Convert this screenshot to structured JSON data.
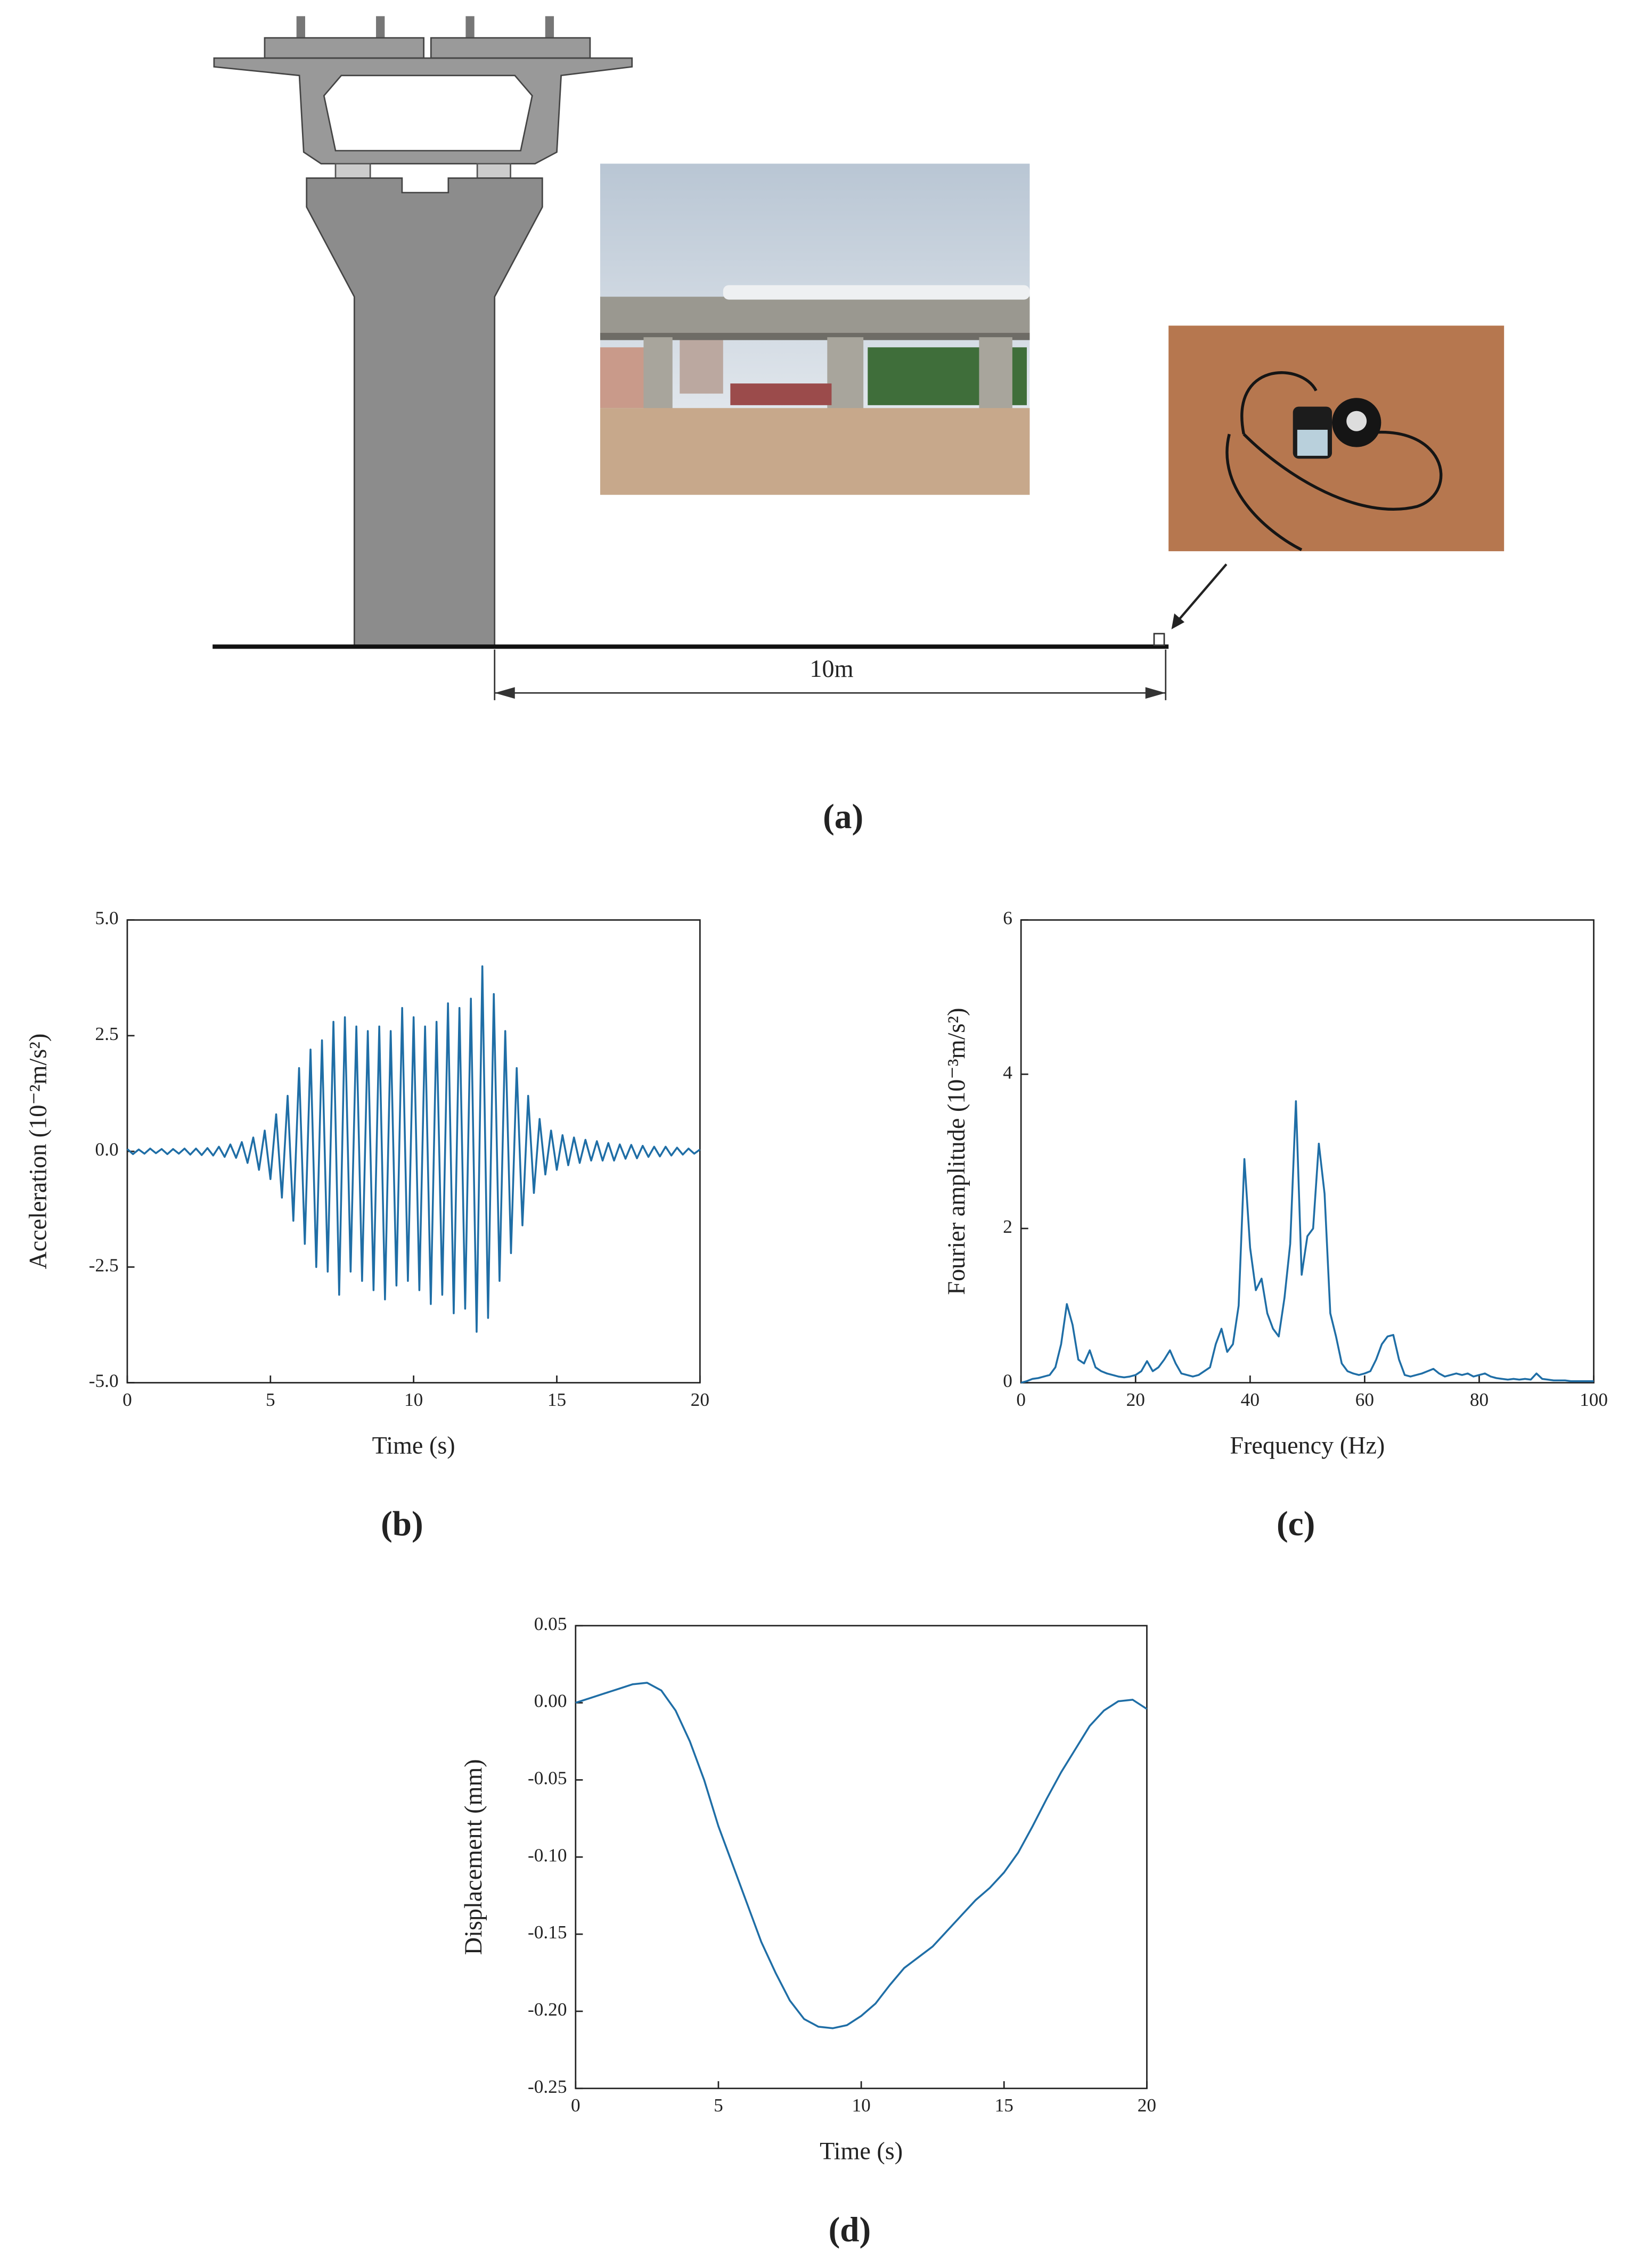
{
  "diagram": {
    "dimension_label": "10m",
    "caption": "(a)"
  },
  "chart_data": [
    {
      "type": "line",
      "caption": "(b)",
      "x_label": "Time (s)",
      "y_label": "Acceleration (10⁻²m/s²)",
      "color": "#1f6ea6",
      "xlim": [
        0,
        20
      ],
      "xticks": [
        0,
        5,
        10,
        15,
        20
      ],
      "ylim": [
        -5,
        5
      ],
      "yticks": [
        {
          "value": -5,
          "label": "-5.0"
        },
        {
          "value": -2.5,
          "label": "-2.5"
        },
        {
          "value": 0,
          "label": "0.0"
        },
        {
          "value": 2.5,
          "label": "2.5"
        },
        {
          "value": 5,
          "label": "5.0"
        }
      ],
      "x": [
        0,
        0.2,
        0.4,
        0.6,
        0.8,
        1,
        1.2,
        1.4,
        1.6,
        1.8,
        2,
        2.2,
        2.4,
        2.6,
        2.8,
        3,
        3.2,
        3.4,
        3.6,
        3.8,
        4,
        4.2,
        4.4,
        4.6,
        4.8,
        5,
        5.2,
        5.4,
        5.6,
        5.8,
        6,
        6.2,
        6.4,
        6.6,
        6.8,
        7,
        7.2,
        7.4,
        7.6,
        7.8,
        8,
        8.2,
        8.4,
        8.6,
        8.8,
        9,
        9.2,
        9.4,
        9.6,
        9.8,
        10,
        10.2,
        10.4,
        10.6,
        10.8,
        11,
        11.2,
        11.4,
        11.6,
        11.8,
        12,
        12.2,
        12.4,
        12.6,
        12.8,
        13,
        13.2,
        13.4,
        13.6,
        13.8,
        14,
        14.2,
        14.4,
        14.6,
        14.8,
        15,
        15.2,
        15.4,
        15.6,
        15.8,
        16,
        16.2,
        16.4,
        16.6,
        16.8,
        17,
        17.2,
        17.4,
        17.6,
        17.8,
        18,
        18.2,
        18.4,
        18.6,
        18.8,
        19,
        19.2,
        19.4,
        19.6,
        19.8,
        20
      ],
      "values": [
        0.05,
        -0.06,
        0.04,
        -0.05,
        0.06,
        -0.04,
        0.05,
        -0.06,
        0.05,
        -0.05,
        0.06,
        -0.07,
        0.06,
        -0.08,
        0.07,
        -0.09,
        0.1,
        -0.12,
        0.15,
        -0.14,
        0.2,
        -0.25,
        0.3,
        -0.4,
        0.45,
        -0.6,
        0.8,
        -1.0,
        1.2,
        -1.5,
        1.8,
        -2.0,
        2.2,
        -2.5,
        2.4,
        -2.6,
        2.8,
        -3.1,
        2.9,
        -2.6,
        2.7,
        -2.8,
        2.6,
        -3.0,
        2.7,
        -3.2,
        2.6,
        -2.9,
        3.1,
        -2.8,
        2.9,
        -3.0,
        2.7,
        -3.3,
        2.8,
        -3.1,
        3.2,
        -3.5,
        3.1,
        -3.4,
        3.3,
        -3.9,
        4.0,
        -3.6,
        3.4,
        -2.8,
        2.6,
        -2.2,
        1.8,
        -1.6,
        1.2,
        -0.9,
        0.7,
        -0.5,
        0.45,
        -0.4,
        0.35,
        -0.3,
        0.3,
        -0.25,
        0.25,
        -0.2,
        0.22,
        -0.2,
        0.18,
        -0.2,
        0.15,
        -0.16,
        0.14,
        -0.15,
        0.12,
        -0.12,
        0.1,
        -0.11,
        0.1,
        -0.09,
        0.08,
        -0.07,
        0.06,
        -0.05,
        0.04
      ]
    },
    {
      "type": "line",
      "caption": "(c)",
      "x_label": "Frequency (Hz)",
      "y_label": "Fourier amplitude (10⁻³m/s²)",
      "color": "#1f6ea6",
      "xlim": [
        0,
        100
      ],
      "xticks": [
        0,
        20,
        40,
        60,
        80,
        100
      ],
      "ylim": [
        0,
        6
      ],
      "yticks": [
        0,
        2,
        4,
        6
      ],
      "x": [
        0,
        1,
        2,
        3,
        4,
        5,
        6,
        7,
        8,
        9,
        10,
        11,
        12,
        13,
        14,
        15,
        16,
        17,
        18,
        19,
        20,
        21,
        22,
        23,
        24,
        25,
        26,
        27,
        28,
        29,
        30,
        31,
        32,
        33,
        34,
        35,
        36,
        37,
        38,
        39,
        40,
        41,
        42,
        43,
        44,
        45,
        46,
        47,
        48,
        49,
        50,
        51,
        52,
        53,
        54,
        55,
        56,
        57,
        58,
        59,
        60,
        61,
        62,
        63,
        64,
        65,
        66,
        67,
        68,
        69,
        70,
        71,
        72,
        73,
        74,
        75,
        76,
        77,
        78,
        79,
        80,
        81,
        82,
        83,
        84,
        85,
        86,
        87,
        88,
        89,
        90,
        91,
        92,
        93,
        94,
        95,
        96,
        97,
        98,
        99,
        100
      ],
      "values": [
        0,
        0.02,
        0.05,
        0.06,
        0.08,
        0.1,
        0.2,
        0.5,
        1.02,
        0.75,
        0.3,
        0.25,
        0.42,
        0.2,
        0.15,
        0.12,
        0.1,
        0.08,
        0.07,
        0.08,
        0.1,
        0.15,
        0.28,
        0.15,
        0.2,
        0.3,
        0.42,
        0.25,
        0.12,
        0.1,
        0.08,
        0.1,
        0.15,
        0.2,
        0.5,
        0.7,
        0.4,
        0.5,
        1.0,
        2.9,
        1.75,
        1.2,
        1.35,
        0.9,
        0.7,
        0.6,
        1.1,
        1.8,
        3.65,
        1.4,
        1.9,
        2.0,
        3.1,
        2.45,
        0.9,
        0.6,
        0.25,
        0.15,
        0.12,
        0.1,
        0.12,
        0.15,
        0.3,
        0.5,
        0.6,
        0.62,
        0.3,
        0.1,
        0.08,
        0.1,
        0.12,
        0.15,
        0.18,
        0.12,
        0.08,
        0.1,
        0.12,
        0.1,
        0.12,
        0.08,
        0.1,
        0.12,
        0.08,
        0.06,
        0.05,
        0.04,
        0.05,
        0.04,
        0.05,
        0.04,
        0.12,
        0.05,
        0.04,
        0.03,
        0.03,
        0.03,
        0.02,
        0.02,
        0.02,
        0.02,
        0.02
      ]
    },
    {
      "type": "line",
      "caption": "(d)",
      "x_label": "Time (s)",
      "y_label": "Displacement (mm)",
      "color": "#1f6ea6",
      "xlim": [
        0,
        20
      ],
      "xticks": [
        0,
        5,
        10,
        15,
        20
      ],
      "ylim": [
        -0.25,
        0.05
      ],
      "yticks": [
        {
          "value": -0.25,
          "label": "-0.25"
        },
        {
          "value": -0.2,
          "label": "-0.20"
        },
        {
          "value": -0.15,
          "label": "-0.15"
        },
        {
          "value": -0.1,
          "label": "-0.10"
        },
        {
          "value": -0.05,
          "label": "-0.05"
        },
        {
          "value": 0,
          "label": "0.00"
        },
        0.05
      ],
      "x": [
        0,
        0.5,
        1,
        1.5,
        2,
        2.5,
        3,
        3.5,
        4,
        4.5,
        5,
        5.5,
        6,
        6.5,
        7,
        7.5,
        8,
        8.5,
        9,
        9.5,
        10,
        10.5,
        11,
        11.5,
        12,
        12.5,
        13,
        13.5,
        14,
        14.5,
        15,
        15.5,
        16,
        16.5,
        17,
        17.5,
        18,
        18.5,
        19,
        19.5,
        20
      ],
      "values": [
        0,
        0.003,
        0.006,
        0.009,
        0.012,
        0.013,
        0.008,
        -0.005,
        -0.025,
        -0.05,
        -0.08,
        -0.105,
        -0.13,
        -0.155,
        -0.175,
        -0.193,
        -0.205,
        -0.21,
        -0.211,
        -0.209,
        -0.203,
        -0.195,
        -0.183,
        -0.172,
        -0.165,
        -0.158,
        -0.148,
        -0.138,
        -0.128,
        -0.12,
        -0.11,
        -0.097,
        -0.08,
        -0.062,
        -0.045,
        -0.03,
        -0.015,
        -0.005,
        0.001,
        0.002,
        -0.004
      ]
    }
  ]
}
